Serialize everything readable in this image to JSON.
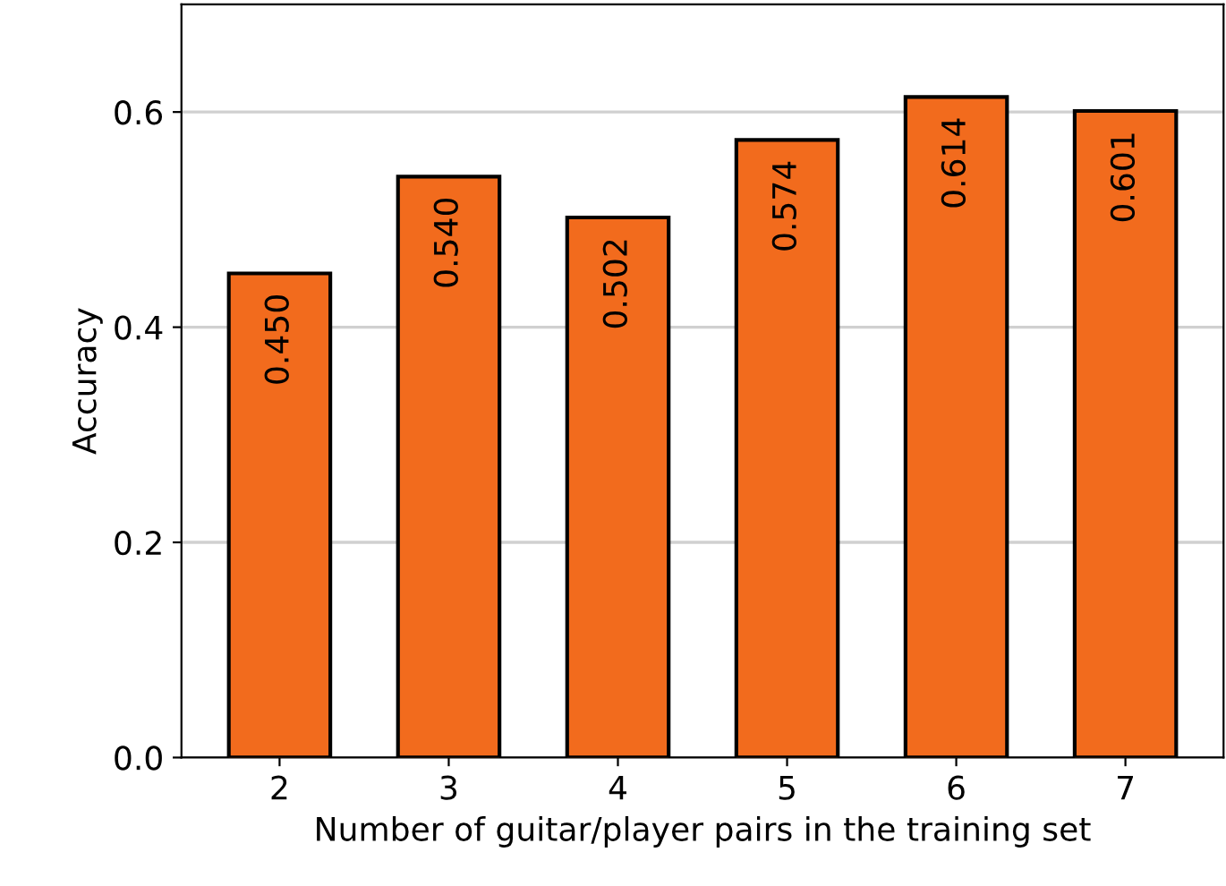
{
  "chart_data": {
    "type": "bar",
    "xlabel": "Number of guitar/player pairs in the training set",
    "ylabel": "Accuracy",
    "categories": [
      "2",
      "3",
      "4",
      "5",
      "6",
      "7"
    ],
    "values": [
      0.45,
      0.54,
      0.502,
      0.574,
      0.614,
      0.601
    ],
    "value_labels": [
      "0.450",
      "0.540",
      "0.502",
      "0.574",
      "0.614",
      "0.601"
    ],
    "color": "#f26b1d",
    "ylim": [
      0,
      0.7
    ],
    "yticks": [
      {
        "value": 0,
        "label": "0.0"
      },
      0.2,
      0.4,
      0.6
    ],
    "grid": "y"
  }
}
